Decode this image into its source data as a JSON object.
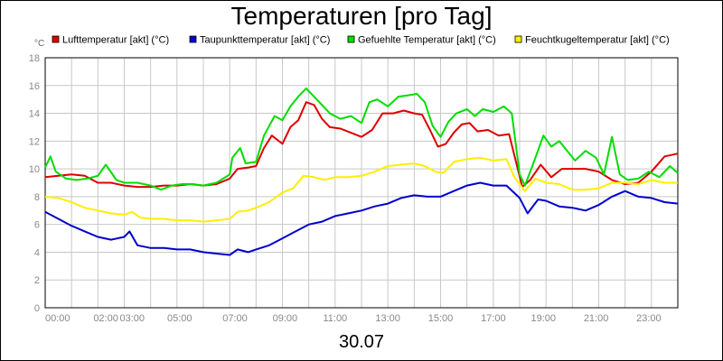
{
  "chart_data": {
    "type": "line",
    "title": "Temperaturen [pro Tag]",
    "date": "30.07",
    "yunit": "°C",
    "ylim": [
      0,
      18
    ],
    "yticks": [
      0,
      2,
      4,
      6,
      8,
      10,
      12,
      14,
      16,
      18
    ],
    "xlim_hours": [
      0,
      24
    ],
    "xtick_labels": [
      {
        "hour": 0,
        "label": "00:00"
      },
      {
        "hour": 2.3,
        "label": "02:00"
      },
      {
        "hour": 3.3,
        "label": "03:00"
      },
      {
        "hour": 5.1,
        "label": "05:00"
      },
      {
        "hour": 7.2,
        "label": "07:00"
      },
      {
        "hour": 9.1,
        "label": "09:00"
      },
      {
        "hour": 11.0,
        "label": "11:00"
      },
      {
        "hour": 13.0,
        "label": "13:00"
      },
      {
        "hour": 15.0,
        "label": "15:00"
      },
      {
        "hour": 17.0,
        "label": "17:00"
      },
      {
        "hour": 18.9,
        "label": "19:00"
      },
      {
        "hour": 20.9,
        "label": "21:00"
      },
      {
        "hour": 22.9,
        "label": "23:00"
      }
    ],
    "legend_position": "top",
    "series": [
      {
        "name": "Lufttemperatur [akt] (°C)",
        "color": "#dd0000",
        "points": [
          [
            0,
            9.4
          ],
          [
            0.5,
            9.5
          ],
          [
            1,
            9.6
          ],
          [
            1.5,
            9.5
          ],
          [
            2,
            9.0
          ],
          [
            2.5,
            9.0
          ],
          [
            3,
            8.8
          ],
          [
            3.5,
            8.7
          ],
          [
            4,
            8.7
          ],
          [
            4.5,
            8.8
          ],
          [
            5,
            8.8
          ],
          [
            5.5,
            8.9
          ],
          [
            6,
            8.8
          ],
          [
            6.5,
            8.9
          ],
          [
            7,
            9.3
          ],
          [
            7.3,
            10.0
          ],
          [
            7.7,
            10.1
          ],
          [
            8,
            10.2
          ],
          [
            8.3,
            11.5
          ],
          [
            8.6,
            12.4
          ],
          [
            9,
            11.8
          ],
          [
            9.3,
            13.0
          ],
          [
            9.6,
            13.5
          ],
          [
            9.9,
            14.8
          ],
          [
            10.2,
            14.6
          ],
          [
            10.5,
            13.6
          ],
          [
            10.8,
            13.0
          ],
          [
            11.2,
            12.9
          ],
          [
            11.6,
            12.6
          ],
          [
            12,
            12.3
          ],
          [
            12.4,
            12.8
          ],
          [
            12.8,
            14.0
          ],
          [
            13.2,
            14.0
          ],
          [
            13.6,
            14.2
          ],
          [
            14,
            14.0
          ],
          [
            14.3,
            13.9
          ],
          [
            14.6,
            12.8
          ],
          [
            14.9,
            11.6
          ],
          [
            15.2,
            11.8
          ],
          [
            15.5,
            12.6
          ],
          [
            15.8,
            13.2
          ],
          [
            16.1,
            13.3
          ],
          [
            16.4,
            12.7
          ],
          [
            16.8,
            12.8
          ],
          [
            17.2,
            12.4
          ],
          [
            17.6,
            12.5
          ],
          [
            17.9,
            10.2
          ],
          [
            18.1,
            8.7
          ],
          [
            18.4,
            9.2
          ],
          [
            18.8,
            10.3
          ],
          [
            19.2,
            9.4
          ],
          [
            19.6,
            10.0
          ],
          [
            20,
            10.0
          ],
          [
            20.5,
            10.0
          ],
          [
            21,
            9.8
          ],
          [
            21.5,
            9.2
          ],
          [
            22,
            8.9
          ],
          [
            22.5,
            9.0
          ],
          [
            23,
            9.8
          ],
          [
            23.5,
            10.9
          ],
          [
            24,
            11.1
          ]
        ]
      },
      {
        "name": "Taupunkttemperatur [akt] (°C)",
        "color": "#0000cc",
        "points": [
          [
            0,
            6.9
          ],
          [
            0.5,
            6.4
          ],
          [
            1,
            5.9
          ],
          [
            1.5,
            5.5
          ],
          [
            2,
            5.1
          ],
          [
            2.5,
            4.9
          ],
          [
            3,
            5.1
          ],
          [
            3.2,
            5.5
          ],
          [
            3.5,
            4.5
          ],
          [
            4,
            4.3
          ],
          [
            4.5,
            4.3
          ],
          [
            5,
            4.2
          ],
          [
            5.5,
            4.2
          ],
          [
            6,
            4.0
          ],
          [
            6.5,
            3.9
          ],
          [
            7,
            3.8
          ],
          [
            7.3,
            4.2
          ],
          [
            7.7,
            4.0
          ],
          [
            8,
            4.2
          ],
          [
            8.5,
            4.5
          ],
          [
            9,
            5.0
          ],
          [
            9.5,
            5.5
          ],
          [
            10,
            6.0
          ],
          [
            10.5,
            6.2
          ],
          [
            11,
            6.6
          ],
          [
            11.5,
            6.8
          ],
          [
            12,
            7.0
          ],
          [
            12.5,
            7.3
          ],
          [
            13,
            7.5
          ],
          [
            13.5,
            7.9
          ],
          [
            14,
            8.1
          ],
          [
            14.5,
            8.0
          ],
          [
            15,
            8.0
          ],
          [
            15.5,
            8.4
          ],
          [
            16,
            8.8
          ],
          [
            16.5,
            9.0
          ],
          [
            17,
            8.8
          ],
          [
            17.5,
            8.8
          ],
          [
            18,
            7.9
          ],
          [
            18.3,
            6.8
          ],
          [
            18.7,
            7.8
          ],
          [
            19,
            7.7
          ],
          [
            19.5,
            7.3
          ],
          [
            20,
            7.2
          ],
          [
            20.5,
            7.0
          ],
          [
            21,
            7.4
          ],
          [
            21.5,
            8.0
          ],
          [
            22,
            8.4
          ],
          [
            22.5,
            8.0
          ],
          [
            23,
            7.9
          ],
          [
            23.5,
            7.6
          ],
          [
            24,
            7.5
          ]
        ]
      },
      {
        "name": "Gefuehlte Temperatur [akt] (°C)",
        "color": "#00dd00",
        "points": [
          [
            0,
            10.1
          ],
          [
            0.2,
            10.9
          ],
          [
            0.4,
            9.8
          ],
          [
            0.8,
            9.3
          ],
          [
            1.2,
            9.2
          ],
          [
            1.6,
            9.3
          ],
          [
            2,
            9.5
          ],
          [
            2.3,
            10.3
          ],
          [
            2.7,
            9.2
          ],
          [
            3,
            9.0
          ],
          [
            3.5,
            9.0
          ],
          [
            4,
            8.8
          ],
          [
            4.4,
            8.5
          ],
          [
            4.8,
            8.8
          ],
          [
            5.2,
            8.9
          ],
          [
            5.6,
            8.9
          ],
          [
            6,
            8.8
          ],
          [
            6.5,
            9.0
          ],
          [
            7,
            9.6
          ],
          [
            7.1,
            10.8
          ],
          [
            7.4,
            11.5
          ],
          [
            7.6,
            10.4
          ],
          [
            8,
            10.5
          ],
          [
            8.3,
            12.4
          ],
          [
            8.7,
            13.8
          ],
          [
            9,
            13.5
          ],
          [
            9.3,
            14.5
          ],
          [
            9.6,
            15.2
          ],
          [
            9.9,
            15.8
          ],
          [
            10.2,
            15.2
          ],
          [
            10.5,
            14.6
          ],
          [
            10.8,
            14.0
          ],
          [
            11.2,
            13.6
          ],
          [
            11.6,
            13.8
          ],
          [
            12,
            13.3
          ],
          [
            12.3,
            14.8
          ],
          [
            12.6,
            15.0
          ],
          [
            13,
            14.5
          ],
          [
            13.4,
            15.2
          ],
          [
            13.8,
            15.3
          ],
          [
            14.1,
            15.4
          ],
          [
            14.4,
            14.8
          ],
          [
            14.7,
            13.1
          ],
          [
            15,
            12.3
          ],
          [
            15.3,
            13.4
          ],
          [
            15.6,
            14.0
          ],
          [
            16,
            14.3
          ],
          [
            16.3,
            13.8
          ],
          [
            16.6,
            14.3
          ],
          [
            17,
            14.1
          ],
          [
            17.4,
            14.5
          ],
          [
            17.7,
            14.0
          ],
          [
            18,
            9.6
          ],
          [
            18.2,
            8.8
          ],
          [
            18.5,
            10.3
          ],
          [
            18.9,
            12.4
          ],
          [
            19.2,
            11.6
          ],
          [
            19.5,
            12.0
          ],
          [
            19.8,
            11.3
          ],
          [
            20.1,
            10.6
          ],
          [
            20.5,
            11.3
          ],
          [
            20.9,
            10.8
          ],
          [
            21.2,
            9.6
          ],
          [
            21.5,
            12.3
          ],
          [
            21.8,
            9.6
          ],
          [
            22.1,
            9.2
          ],
          [
            22.5,
            9.3
          ],
          [
            22.9,
            9.8
          ],
          [
            23.3,
            9.4
          ],
          [
            23.7,
            10.2
          ],
          [
            24,
            9.7
          ]
        ]
      },
      {
        "name": "Feuchtkugeltemperatur [akt] (°C)",
        "color": "#ffee00",
        "points": [
          [
            0,
            8.0
          ],
          [
            0.5,
            7.9
          ],
          [
            1,
            7.6
          ],
          [
            1.5,
            7.2
          ],
          [
            2,
            7.0
          ],
          [
            2.5,
            6.8
          ],
          [
            3,
            6.7
          ],
          [
            3.3,
            6.9
          ],
          [
            3.6,
            6.5
          ],
          [
            4,
            6.4
          ],
          [
            4.5,
            6.4
          ],
          [
            5,
            6.3
          ],
          [
            5.5,
            6.3
          ],
          [
            6,
            6.2
          ],
          [
            6.5,
            6.3
          ],
          [
            7,
            6.4
          ],
          [
            7.3,
            6.9
          ],
          [
            7.7,
            7.0
          ],
          [
            8,
            7.2
          ],
          [
            8.5,
            7.6
          ],
          [
            9,
            8.3
          ],
          [
            9.4,
            8.6
          ],
          [
            9.8,
            9.5
          ],
          [
            10.2,
            9.4
          ],
          [
            10.6,
            9.2
          ],
          [
            11,
            9.4
          ],
          [
            11.5,
            9.4
          ],
          [
            12,
            9.5
          ],
          [
            12.5,
            9.8
          ],
          [
            13,
            10.2
          ],
          [
            13.5,
            10.3
          ],
          [
            14,
            10.4
          ],
          [
            14.4,
            10.2
          ],
          [
            14.8,
            9.8
          ],
          [
            15.1,
            9.7
          ],
          [
            15.5,
            10.5
          ],
          [
            16,
            10.7
          ],
          [
            16.5,
            10.8
          ],
          [
            17,
            10.6
          ],
          [
            17.5,
            10.7
          ],
          [
            17.8,
            9.4
          ],
          [
            18.2,
            8.4
          ],
          [
            18.6,
            9.3
          ],
          [
            19,
            9.0
          ],
          [
            19.5,
            8.9
          ],
          [
            20,
            8.5
          ],
          [
            20.5,
            8.5
          ],
          [
            21,
            8.6
          ],
          [
            21.5,
            9.0
          ],
          [
            22,
            9.0
          ],
          [
            22.5,
            8.9
          ],
          [
            23,
            9.2
          ],
          [
            23.5,
            9.0
          ],
          [
            24,
            9.0
          ]
        ]
      }
    ]
  }
}
